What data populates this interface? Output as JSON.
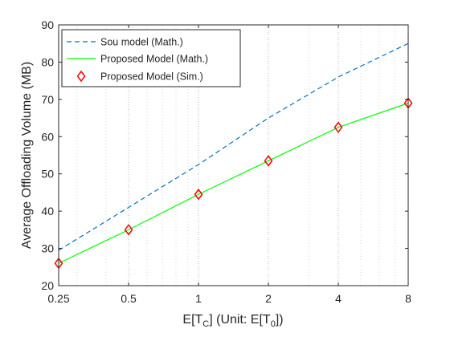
{
  "chart_data": {
    "type": "line",
    "x": [
      0.25,
      0.5,
      1,
      2,
      4,
      8
    ],
    "x_scale": "log2",
    "x_tick_labels": [
      "0.25",
      "0.5",
      "1",
      "2",
      "4",
      "8"
    ],
    "y_ticks": [
      20,
      30,
      40,
      50,
      60,
      70,
      80,
      90
    ],
    "ylim": [
      20,
      90
    ],
    "xlim": [
      0.25,
      8
    ],
    "xlabel_parts": [
      "E[T",
      "C",
      "] (Unit: E[T",
      "0",
      "])"
    ],
    "ylabel": "Average Offloading Volume (MB)",
    "grid": "x-major-and-minor-dotted",
    "legend_position": "top-left",
    "series": [
      {
        "name": "Sou model (Math.)",
        "style": "dashed-line",
        "color": "#0072BD",
        "values": [
          29.5,
          41,
          52.5,
          65,
          76,
          85
        ]
      },
      {
        "name": "Proposed Model (Math.)",
        "style": "solid-line",
        "color": "#00ff00",
        "values": [
          26,
          35,
          44.5,
          53.5,
          62.5,
          69
        ]
      },
      {
        "name": "Proposed Model (Sim.)",
        "style": "diamond-markers",
        "color": "#ff0000",
        "values": [
          26,
          35,
          44.5,
          53.5,
          62.5,
          69
        ]
      }
    ]
  }
}
